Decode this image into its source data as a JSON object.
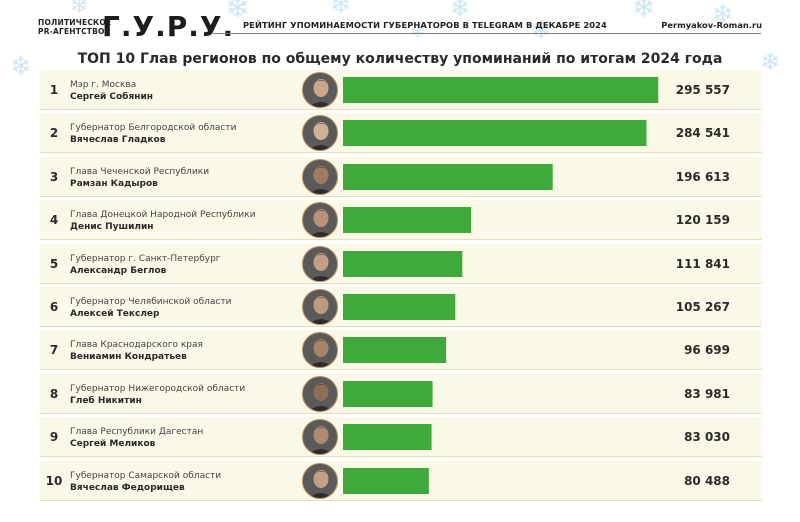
{
  "header": {
    "agency_line1": "ПОЛИТИЧЕСКОЕ",
    "agency_line2": "PR-АГЕНТСТВО",
    "logo": "Г.У.Р.У.",
    "subtitle": "РЕЙТИНГ УПОМИНАЕМОСТИ ГУБЕРНАТОРОВ В TELEGRAM В ДЕКАБРЕ 2024",
    "site": "Permyakov-Roman.ru"
  },
  "colors": {
    "bar": "#3faa3b",
    "row_bg": "#faf8e6",
    "row_border": "#e6e0b8",
    "snow": "#cfe6f3"
  },
  "chart_data": {
    "type": "bar",
    "title": "ТОП 10 Глав регионов по общему количеству упоминаний по итогам 2024 года",
    "orientation": "horizontal",
    "xlim": [
      0,
      300000
    ],
    "rows": [
      {
        "rank": "1",
        "position": "Мэр г. Москва",
        "name": "Сергей Собянин",
        "value": 295557,
        "value_label": "295 557"
      },
      {
        "rank": "2",
        "position": "Губернатор Белгородской области",
        "name": "Вячеслав Гладков",
        "value": 284541,
        "value_label": "284 541"
      },
      {
        "rank": "3",
        "position": "Глава Чеченской Республики",
        "name": "Рамзан Кадыров",
        "value": 196613,
        "value_label": "196 613"
      },
      {
        "rank": "4",
        "position": "Глава Донецкой Народной Республики",
        "name": "Денис Пушилин",
        "value": 120159,
        "value_label": "120 159"
      },
      {
        "rank": "5",
        "position": "Губернатор г. Санкт-Петербург",
        "name": "Александр Беглов",
        "value": 111841,
        "value_label": "111 841"
      },
      {
        "rank": "6",
        "position": "Губернатор Челябинской области",
        "name": "Алексей Текслер",
        "value": 105267,
        "value_label": "105 267"
      },
      {
        "rank": "7",
        "position": "Глава Краснодарского края",
        "name": "Вениамин Кондратьев",
        "value": 96699,
        "value_label": "96 699"
      },
      {
        "rank": "8",
        "position": "Губернатор Нижегородской области",
        "name": "Глеб Никитин",
        "value": 83981,
        "value_label": "83 981"
      },
      {
        "rank": "9",
        "position": "Глава Республики Дагестан",
        "name": "Сергей Меликов",
        "value": 83030,
        "value_label": "83 030"
      },
      {
        "rank": "10",
        "position": "Губернатор Самарской области",
        "name": "Вячеслав Федорищев",
        "value": 80488,
        "value_label": "80 488"
      }
    ]
  }
}
